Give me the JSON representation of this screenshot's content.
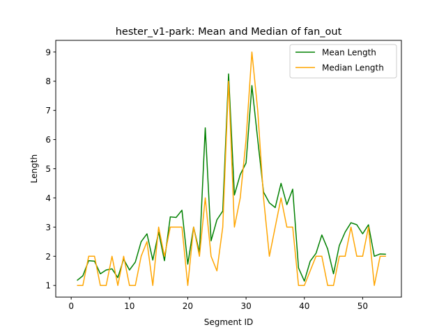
{
  "chart_data": {
    "type": "line",
    "title": "hester_v1-park: Mean and Median of fan_out",
    "xlabel": "Segment ID",
    "ylabel": "Length",
    "xlim": [
      -2.65,
      56.65
    ],
    "ylim": [
      0.6,
      9.4
    ],
    "xticks": [
      0,
      10,
      20,
      30,
      40,
      50
    ],
    "yticks": [
      1,
      2,
      3,
      4,
      5,
      6,
      7,
      8,
      9
    ],
    "grid": false,
    "legend_position": "top-right",
    "x": [
      1,
      2,
      3,
      4,
      5,
      6,
      7,
      8,
      9,
      10,
      11,
      12,
      13,
      14,
      15,
      16,
      17,
      18,
      19,
      20,
      21,
      22,
      23,
      24,
      25,
      26,
      27,
      28,
      29,
      30,
      31,
      32,
      33,
      34,
      35,
      36,
      37,
      38,
      39,
      40,
      41,
      42,
      43,
      44,
      45,
      46,
      47,
      48,
      49,
      50,
      51,
      52,
      53,
      54
    ],
    "series": [
      {
        "name": "Mean Length",
        "color": "#008000",
        "values": [
          1.17,
          1.33,
          1.85,
          1.83,
          1.4,
          1.53,
          1.57,
          1.27,
          1.9,
          1.53,
          1.8,
          2.5,
          2.77,
          1.87,
          2.83,
          1.85,
          3.35,
          3.33,
          3.58,
          1.73,
          3.0,
          2.13,
          6.4,
          2.53,
          3.25,
          3.55,
          8.25,
          4.1,
          4.8,
          5.2,
          7.85,
          6.0,
          4.2,
          3.83,
          3.67,
          4.5,
          3.77,
          4.3,
          1.6,
          1.15,
          1.83,
          2.1,
          2.73,
          2.25,
          1.4,
          2.37,
          2.83,
          3.15,
          3.08,
          2.77,
          3.08,
          2.0,
          2.08,
          2.07
        ]
      },
      {
        "name": "Median Length",
        "color": "#FFA500",
        "values": [
          1,
          1,
          2,
          2,
          1,
          1,
          2,
          1,
          2,
          1,
          1,
          2,
          2.5,
          1,
          3,
          2,
          3,
          3,
          3,
          1,
          3,
          2,
          4,
          2,
          1.5,
          3,
          8,
          3,
          4,
          6,
          9,
          7,
          4,
          2,
          3,
          4,
          3,
          3,
          1,
          1,
          1.5,
          2,
          2,
          1,
          1,
          2,
          2,
          3,
          2,
          2,
          3,
          1,
          2,
          2
        ]
      }
    ]
  }
}
